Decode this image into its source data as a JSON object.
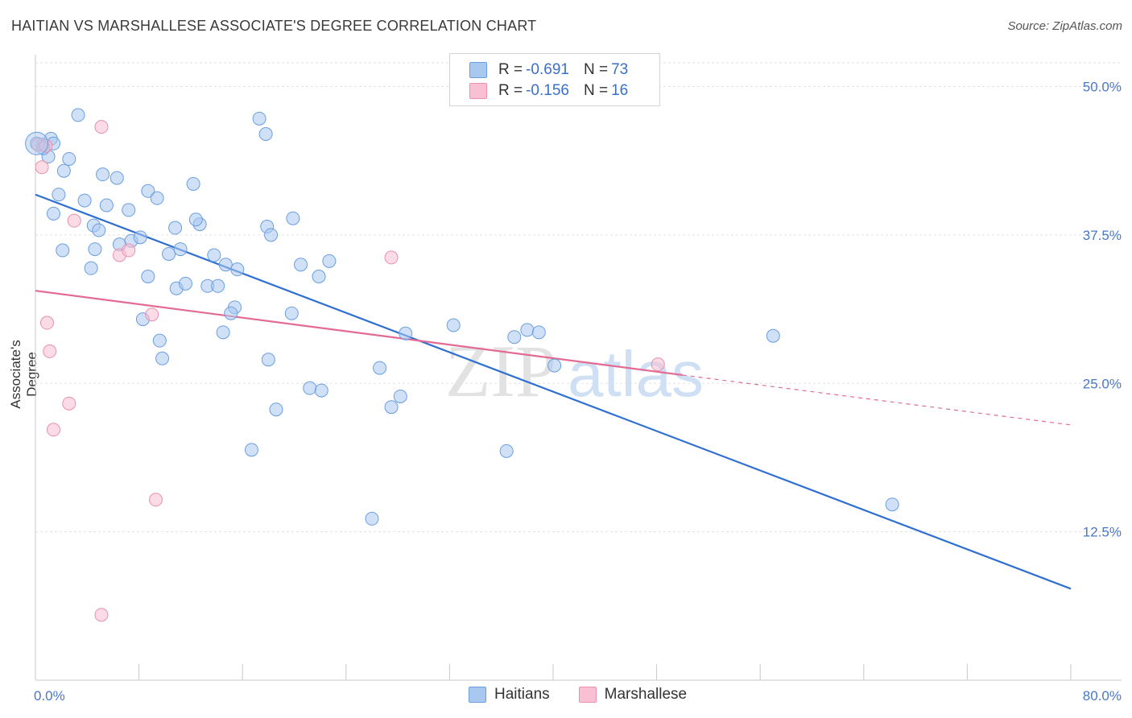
{
  "title": "HAITIAN VS MARSHALLESE ASSOCIATE'S DEGREE CORRELATION CHART",
  "source": "Source: ZipAtlas.com",
  "watermark": {
    "zip": "ZIP",
    "atlas": "atlas"
  },
  "legend_top": [
    {
      "r_label": "R = ",
      "r_value": "-0.691",
      "n_label": "N = ",
      "n_value": "73",
      "color": "#a9c8f0",
      "border": "#6a9ee0"
    },
    {
      "r_label": "R = ",
      "r_value": "-0.156",
      "n_label": "N = ",
      "n_value": "16",
      "color": "#f8c0d2",
      "border": "#e890ac"
    }
  ],
  "chart_data": {
    "type": "scatter",
    "title": "HAITIAN VS MARSHALLESE ASSOCIATE'S DEGREE CORRELATION CHART",
    "xlabel": "",
    "ylabel": "Associate's Degree",
    "xlim": [
      0,
      80
    ],
    "ylim": [
      0,
      52
    ],
    "x_tick_labels": [
      "0.0%",
      "80.0%"
    ],
    "y_ticks": [
      12.5,
      25.0,
      37.5,
      50.0
    ],
    "y_tick_labels": [
      "12.5%",
      "25.0%",
      "37.5%",
      "50.0%"
    ],
    "grid": true,
    "legend_position": "top-center",
    "series": [
      {
        "name": "Haitians",
        "color": "#6a9ee0",
        "fill": "#a9c8f0",
        "trend": {
          "x": [
            0,
            80
          ],
          "y": [
            40.9,
            7.7
          ],
          "color": "#2f6fd0"
        },
        "points": [
          [
            0.1,
            45.2
          ],
          [
            0.6,
            45.1
          ],
          [
            1.0,
            44.1
          ],
          [
            1.2,
            45.6
          ],
          [
            1.4,
            45.2
          ],
          [
            3.3,
            47.6
          ],
          [
            2.2,
            42.9
          ],
          [
            2.6,
            43.9
          ],
          [
            1.8,
            40.9
          ],
          [
            3.8,
            40.4
          ],
          [
            5.2,
            42.6
          ],
          [
            6.3,
            42.3
          ],
          [
            5.5,
            40.0
          ],
          [
            8.7,
            41.2
          ],
          [
            9.4,
            40.6
          ],
          [
            7.2,
            39.6
          ],
          [
            1.4,
            39.3
          ],
          [
            12.2,
            41.8
          ],
          [
            4.5,
            38.3
          ],
          [
            4.9,
            37.9
          ],
          [
            6.5,
            36.7
          ],
          [
            7.4,
            37.0
          ],
          [
            8.1,
            37.3
          ],
          [
            10.8,
            38.1
          ],
          [
            12.7,
            38.4
          ],
          [
            12.4,
            38.8
          ],
          [
            2.1,
            36.2
          ],
          [
            4.6,
            36.3
          ],
          [
            10.3,
            35.9
          ],
          [
            11.2,
            36.3
          ],
          [
            13.8,
            35.8
          ],
          [
            14.7,
            35.0
          ],
          [
            4.3,
            34.7
          ],
          [
            8.7,
            34.0
          ],
          [
            10.9,
            33.0
          ],
          [
            11.6,
            33.4
          ],
          [
            13.3,
            33.2
          ],
          [
            14.1,
            33.2
          ],
          [
            15.6,
            34.6
          ],
          [
            17.3,
            47.3
          ],
          [
            17.9,
            38.2
          ],
          [
            18.2,
            37.5
          ],
          [
            17.8,
            46.0
          ],
          [
            19.9,
            38.9
          ],
          [
            20.5,
            35.0
          ],
          [
            22.7,
            35.3
          ],
          [
            21.9,
            34.0
          ],
          [
            8.3,
            30.4
          ],
          [
            15.4,
            31.4
          ],
          [
            15.1,
            30.9
          ],
          [
            14.5,
            29.3
          ],
          [
            9.6,
            28.6
          ],
          [
            9.8,
            27.1
          ],
          [
            18.0,
            27.0
          ],
          [
            19.8,
            30.9
          ],
          [
            21.2,
            24.6
          ],
          [
            22.1,
            24.4
          ],
          [
            18.6,
            22.8
          ],
          [
            16.7,
            19.4
          ],
          [
            26.6,
            26.3
          ],
          [
            28.6,
            29.2
          ],
          [
            28.2,
            23.9
          ],
          [
            27.5,
            23.0
          ],
          [
            32.3,
            29.9
          ],
          [
            37.0,
            28.9
          ],
          [
            38.0,
            29.5
          ],
          [
            38.9,
            29.3
          ],
          [
            40.1,
            26.5
          ],
          [
            36.4,
            19.3
          ],
          [
            26.0,
            13.6
          ],
          [
            57.0,
            29.0
          ],
          [
            66.2,
            14.8
          ],
          [
            0.6,
            44.8
          ]
        ]
      },
      {
        "name": "Marshallese",
        "color": "#e890ac",
        "fill": "#f8c0d2",
        "trend": {
          "x": [
            0,
            50
          ],
          "y": [
            32.8,
            25.7
          ],
          "dash_to_x": 80,
          "dash_to_y": 21.5,
          "color": "#e36a93"
        },
        "points": [
          [
            0.2,
            45.1
          ],
          [
            0.5,
            43.2
          ],
          [
            5.1,
            46.6
          ],
          [
            0.8,
            45.0
          ],
          [
            3.0,
            38.7
          ],
          [
            6.5,
            35.8
          ],
          [
            7.2,
            36.2
          ],
          [
            9.0,
            30.8
          ],
          [
            0.9,
            30.1
          ],
          [
            1.1,
            27.7
          ],
          [
            27.5,
            35.6
          ],
          [
            48.1,
            26.6
          ],
          [
            2.6,
            23.3
          ],
          [
            1.4,
            21.1
          ],
          [
            9.3,
            15.2
          ],
          [
            5.1,
            5.5
          ]
        ]
      }
    ]
  },
  "bottom_legend": [
    "Haitians",
    "Marshallese"
  ]
}
